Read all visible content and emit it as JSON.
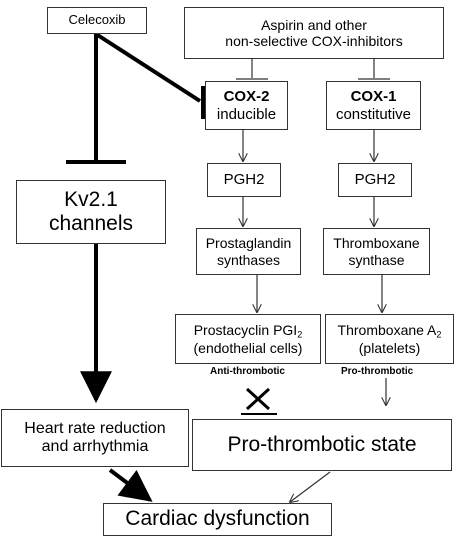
{
  "nodes": {
    "celecoxib": "Celecoxib",
    "aspirin": {
      "line1": "Aspirin and other",
      "line2": "non-selective COX-inhibitors"
    },
    "cox2": {
      "name": "COX-2",
      "sub": "inducible"
    },
    "cox1": {
      "name": "COX-1",
      "sub": "constitutive"
    },
    "pgh2_left": "PGH2",
    "pgh2_right": "PGH2",
    "prostaglandin": {
      "line1": "Prostaglandin",
      "line2": "synthases"
    },
    "thromboxane_synthase": {
      "line1": "Thromboxane",
      "line2": "synthase"
    },
    "prostacyclin": {
      "line1_main": "Prostacyclin PGI",
      "line1_sub": "2",
      "line2": "(endothelial cells)"
    },
    "thromboxane_a2": {
      "line1_main": "Thromboxane A",
      "line1_sub": "2",
      "line2": "(platelets)"
    },
    "kv21": {
      "line1": "Kv2.1",
      "line2": "channels"
    },
    "heart_rate": {
      "line1": "Heart rate reduction",
      "line2": "and arrhythmia"
    },
    "pro_thrombotic_state": "Pro-thrombotic state",
    "cardiac": "Cardiac dysfunction"
  },
  "tags": {
    "anti_thrombotic": "Anti-thrombotic",
    "pro_thrombotic": "Pro-thrombotic"
  }
}
